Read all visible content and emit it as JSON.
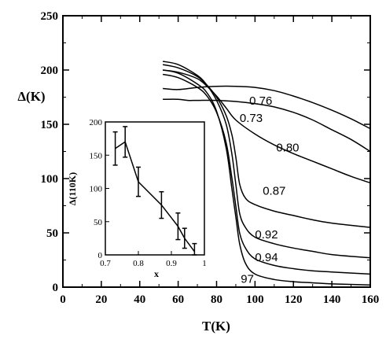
{
  "chart_data": [
    {
      "type": "line",
      "xlabel": "T(K)",
      "ylabel": "Δ(K)",
      "xlim": [
        0,
        160
      ],
      "ylim": [
        0,
        250
      ],
      "xticks": [
        "0",
        "20",
        "40",
        "60",
        "80",
        "100",
        "120",
        "140",
        "160"
      ],
      "yticks": [
        "0",
        "50",
        "100",
        "150",
        "200",
        "250"
      ],
      "grid": false,
      "series": [
        {
          "name": "0.76",
          "x": [
            52,
            60,
            70,
            80,
            90,
            100,
            110,
            120,
            130,
            140,
            150,
            160
          ],
          "y": [
            183,
            182,
            184,
            185,
            185,
            184,
            181,
            176,
            170,
            163,
            155,
            146
          ]
        },
        {
          "name": "0.73",
          "x": [
            52,
            60,
            65,
            70,
            80,
            90,
            100,
            110,
            120,
            130,
            140,
            150,
            160
          ],
          "y": [
            173,
            173,
            172,
            172,
            172,
            171,
            169,
            166,
            161,
            154,
            145,
            136,
            125
          ]
        },
        {
          "name": "0.80",
          "x": [
            52,
            60,
            70,
            75,
            80,
            85,
            90,
            100,
            110,
            120,
            130,
            140,
            150,
            160
          ],
          "y": [
            200,
            198,
            192,
            185,
            176,
            165,
            154,
            141,
            131,
            123,
            116,
            109,
            102,
            96
          ]
        },
        {
          "name": "0.87",
          "x": [
            52,
            60,
            70,
            75,
            80,
            85,
            88,
            90,
            92,
            95,
            100,
            110,
            120,
            130,
            140,
            160
          ],
          "y": [
            205,
            202,
            194,
            186,
            175,
            158,
            140,
            120,
            95,
            82,
            76,
            70,
            66,
            62,
            59,
            55
          ]
        },
        {
          "name": "0.92",
          "x": [
            52,
            60,
            70,
            75,
            80,
            85,
            88,
            90,
            92,
            95,
            100,
            110,
            120,
            130,
            140,
            160
          ],
          "y": [
            208,
            205,
            195,
            186,
            172,
            150,
            122,
            95,
            68,
            55,
            46,
            40,
            36,
            33,
            30,
            27
          ]
        },
        {
          "name": "0.94",
          "x": [
            52,
            60,
            70,
            75,
            80,
            85,
            88,
            90,
            92,
            95,
            100,
            110,
            120,
            130,
            140,
            160
          ],
          "y": [
            196,
            193,
            184,
            176,
            161,
            133,
            100,
            75,
            50,
            36,
            26,
            20,
            17,
            15,
            14,
            12
          ]
        },
        {
          "name": "97",
          "x": [
            52,
            60,
            70,
            75,
            80,
            85,
            88,
            90,
            92,
            95,
            100,
            110,
            120,
            130,
            140,
            160
          ],
          "y": [
            200,
            197,
            187,
            179,
            162,
            128,
            90,
            65,
            40,
            22,
            12,
            7,
            5,
            4,
            3,
            2
          ]
        }
      ],
      "annotations": [
        "0.76",
        "0.73",
        "0.80",
        "0.87",
        "0.92",
        "0.94",
        "97"
      ]
    },
    {
      "type": "line",
      "xlabel": "x",
      "ylabel": "Δ(110K)",
      "xlim": [
        0.7,
        1.0
      ],
      "ylim": [
        0,
        200
      ],
      "xticks": [
        "0.7",
        "0.8",
        "0.9",
        "1"
      ],
      "yticks": [
        "0",
        "50",
        "100",
        "150",
        "200"
      ],
      "series": [
        {
          "name": "",
          "x": [
            0.73,
            0.76,
            0.8,
            0.87,
            0.92,
            0.94,
            0.97
          ],
          "y": [
            160,
            170,
            110,
            75,
            43,
            25,
            5
          ],
          "err": [
            25,
            23,
            22,
            20,
            20,
            15,
            12
          ]
        }
      ]
    }
  ]
}
